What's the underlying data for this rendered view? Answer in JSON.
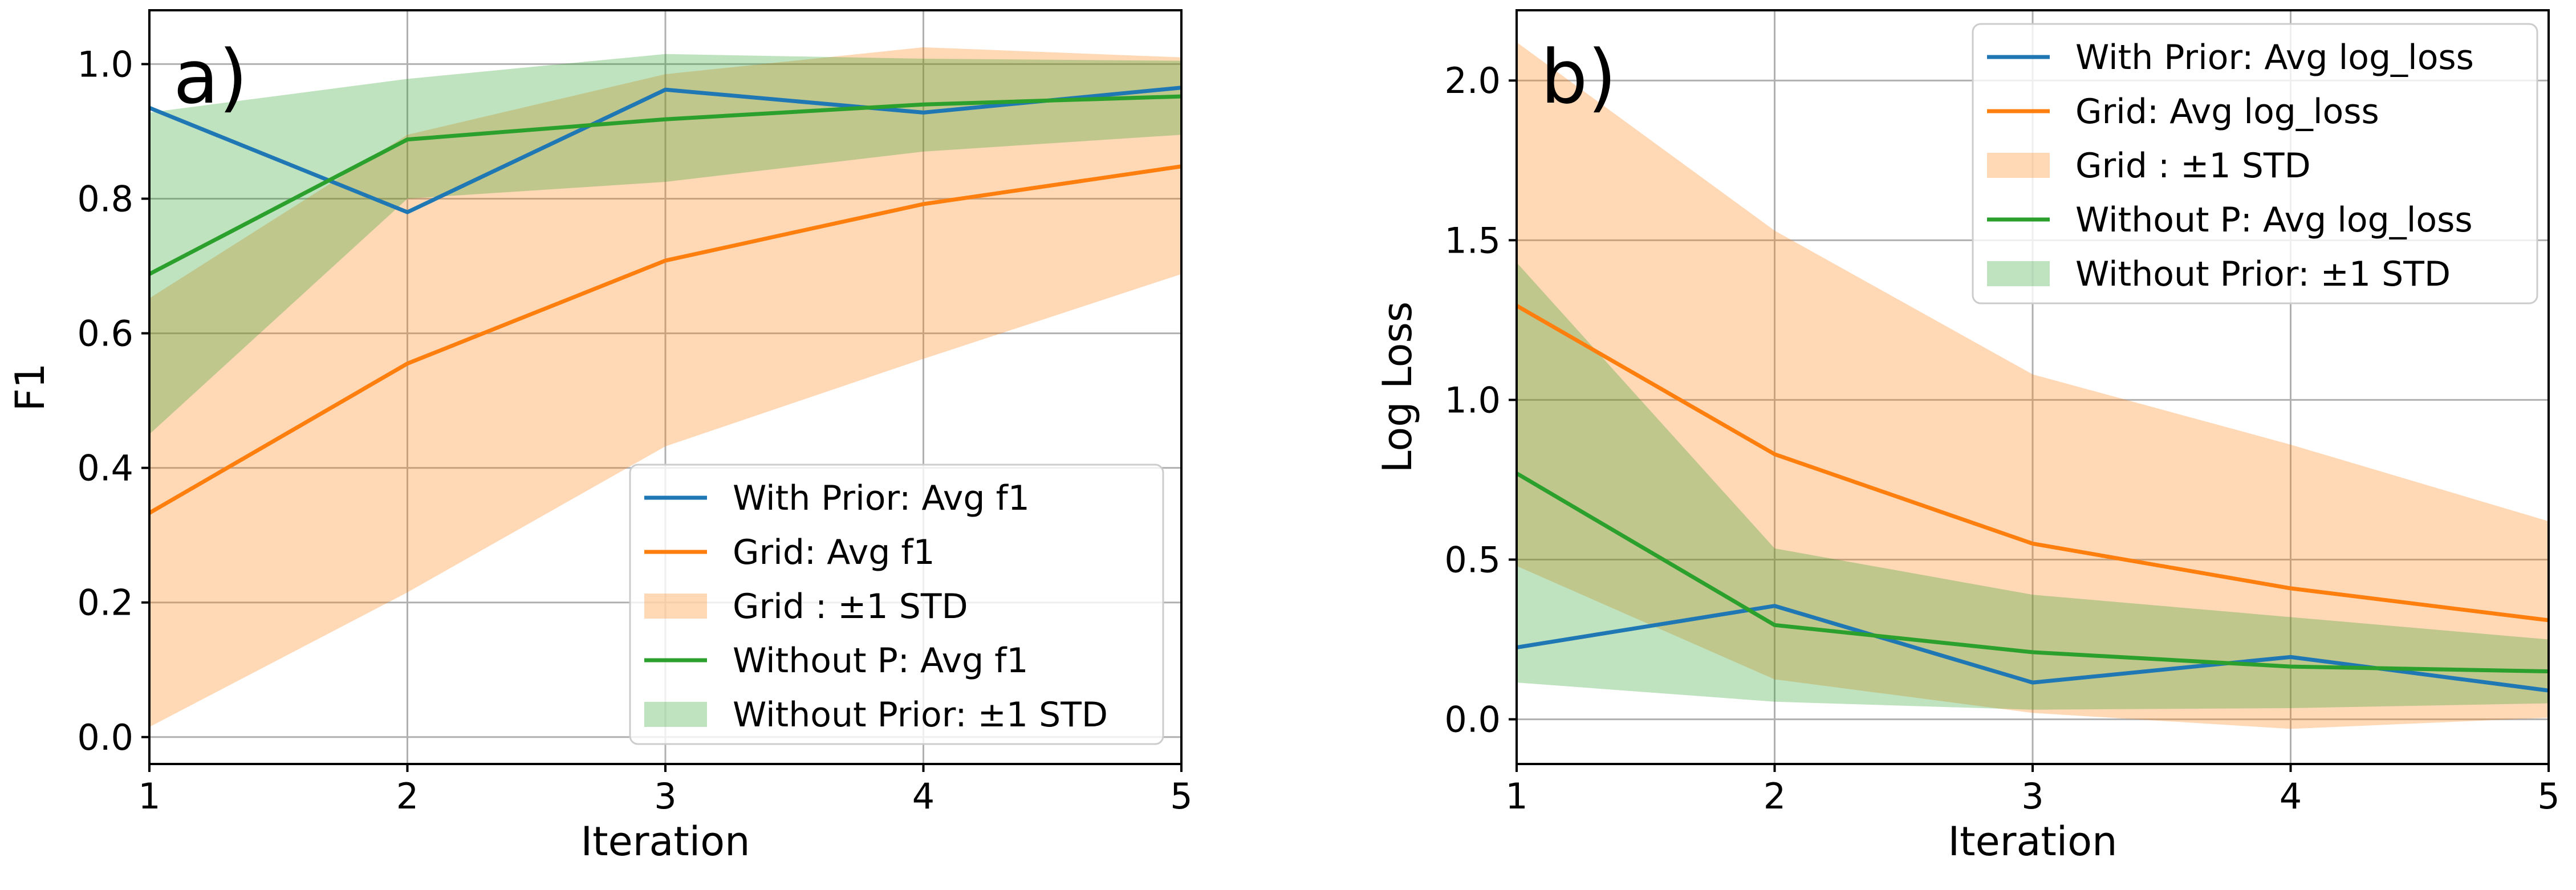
{
  "chart_data": [
    {
      "type": "line",
      "panel_label": "a)",
      "title": "",
      "xlabel": "Iteration",
      "ylabel": "F1",
      "x": [
        1,
        2,
        3,
        4,
        5
      ],
      "xlim": [
        1,
        5
      ],
      "ylim": [
        -0.04,
        1.08
      ],
      "xticks": [
        1,
        2,
        3,
        4,
        5
      ],
      "yticks": [
        0.0,
        0.2,
        0.4,
        0.6,
        0.8,
        1.0
      ],
      "ytick_labels": [
        "0.0",
        "0.2",
        "0.4",
        "0.6",
        "0.8",
        "1.0"
      ],
      "grid": true,
      "legend_position": "lower-right",
      "series": [
        {
          "name": "With Prior: Avg f1",
          "kind": "line",
          "color": "#1f77b4",
          "values": [
            0.935,
            0.78,
            0.962,
            0.928,
            0.965
          ]
        },
        {
          "name": "Grid: Avg f1",
          "kind": "line",
          "color": "#ff7f0e",
          "values": [
            0.333,
            0.555,
            0.708,
            0.792,
            0.848
          ]
        },
        {
          "name": "Grid : ±1 STD",
          "kind": "band",
          "color": "#ff7f0e",
          "opacity": 0.3,
          "lower": [
            0.015,
            0.215,
            0.432,
            0.562,
            0.688
          ],
          "upper": [
            0.652,
            0.895,
            0.985,
            1.025,
            1.01
          ]
        },
        {
          "name": "Without P: Avg f1",
          "kind": "line",
          "color": "#2ca02c",
          "values": [
            0.688,
            0.888,
            0.918,
            0.94,
            0.952
          ]
        },
        {
          "name": "Without Prior: ±1 STD",
          "kind": "band",
          "color": "#2ca02c",
          "opacity": 0.3,
          "lower": [
            0.45,
            0.8,
            0.825,
            0.87,
            0.895
          ],
          "upper": [
            0.928,
            0.978,
            1.015,
            1.008,
            1.005
          ]
        }
      ]
    },
    {
      "type": "line",
      "panel_label": "b)",
      "title": "",
      "xlabel": "Iteration",
      "ylabel": "Log Loss",
      "x": [
        1,
        2,
        3,
        4,
        5
      ],
      "xlim": [
        1,
        5
      ],
      "ylim": [
        -0.14,
        2.22
      ],
      "xticks": [
        1,
        2,
        3,
        4,
        5
      ],
      "yticks": [
        0.0,
        0.5,
        1.0,
        1.5,
        2.0
      ],
      "ytick_labels": [
        "0.0",
        "0.5",
        "1.0",
        "1.5",
        "2.0"
      ],
      "grid": true,
      "legend_position": "upper-right",
      "series": [
        {
          "name": "With Prior: Avg log_loss",
          "kind": "line",
          "color": "#1f77b4",
          "values": [
            0.225,
            0.355,
            0.115,
            0.195,
            0.09
          ]
        },
        {
          "name": "Grid: Avg log_loss",
          "kind": "line",
          "color": "#ff7f0e",
          "values": [
            1.295,
            0.83,
            0.55,
            0.41,
            0.31
          ]
        },
        {
          "name": "Grid : ±1 STD",
          "kind": "band",
          "color": "#ff7f0e",
          "opacity": 0.3,
          "lower": [
            0.48,
            0.125,
            0.02,
            -0.03,
            0.005
          ],
          "upper": [
            2.12,
            1.53,
            1.08,
            0.86,
            0.62
          ]
        },
        {
          "name": "Without P: Avg log_loss",
          "kind": "line",
          "color": "#2ca02c",
          "values": [
            0.77,
            0.295,
            0.21,
            0.165,
            0.15
          ]
        },
        {
          "name": "Without Prior: ±1 STD",
          "kind": "band",
          "color": "#2ca02c",
          "opacity": 0.3,
          "lower": [
            0.115,
            0.055,
            0.03,
            0.035,
            0.05
          ],
          "upper": [
            1.43,
            0.535,
            0.39,
            0.32,
            0.25
          ]
        }
      ]
    }
  ]
}
